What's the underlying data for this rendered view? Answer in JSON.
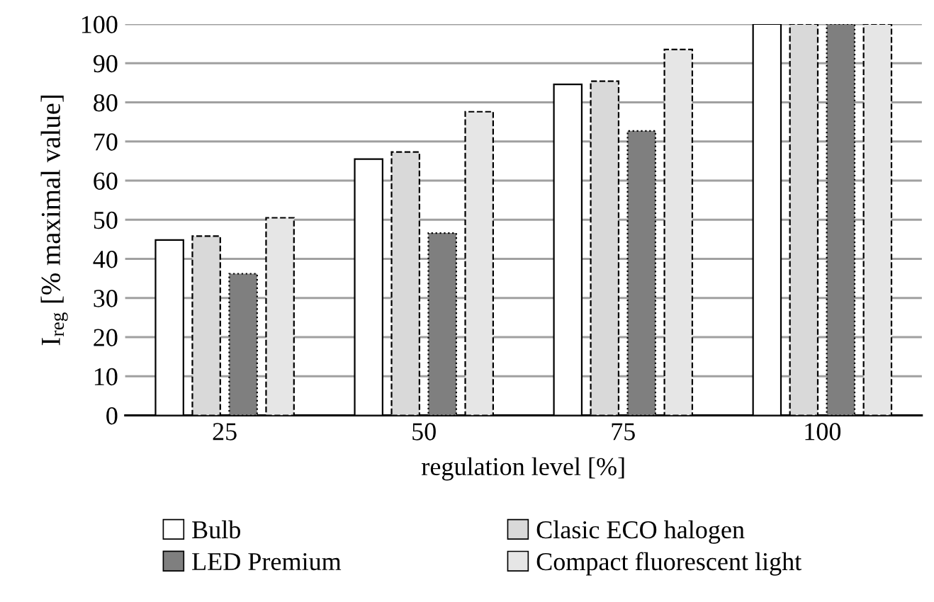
{
  "chart_data": {
    "type": "bar",
    "xlabel": "regulation level [%]",
    "ylabel": "I$_{reg}$ [% maximal value]",
    "categories": [
      "25",
      "50",
      "75",
      "100"
    ],
    "series": [
      {
        "name": "Bulb",
        "color": "#ffffff",
        "values": [
          44.8,
          65.5,
          84.6,
          100
        ]
      },
      {
        "name": "Clasic ECO halogen",
        "color": "#d9d9d9",
        "values": [
          45.8,
          67.3,
          85.4,
          100
        ]
      },
      {
        "name": "LED Premium",
        "color": "#7f7f7f",
        "values": [
          36.2,
          46.6,
          72.7,
          100
        ]
      },
      {
        "name": "Compact fluorescent light",
        "color": "#e6e6e6",
        "values": [
          50.5,
          77.6,
          93.5,
          100
        ]
      }
    ],
    "ylim": [
      0,
      100
    ],
    "yticks": [
      0,
      10,
      20,
      30,
      40,
      50,
      60,
      70,
      80,
      90,
      100
    ],
    "grid": "y",
    "legend": "bottom"
  }
}
